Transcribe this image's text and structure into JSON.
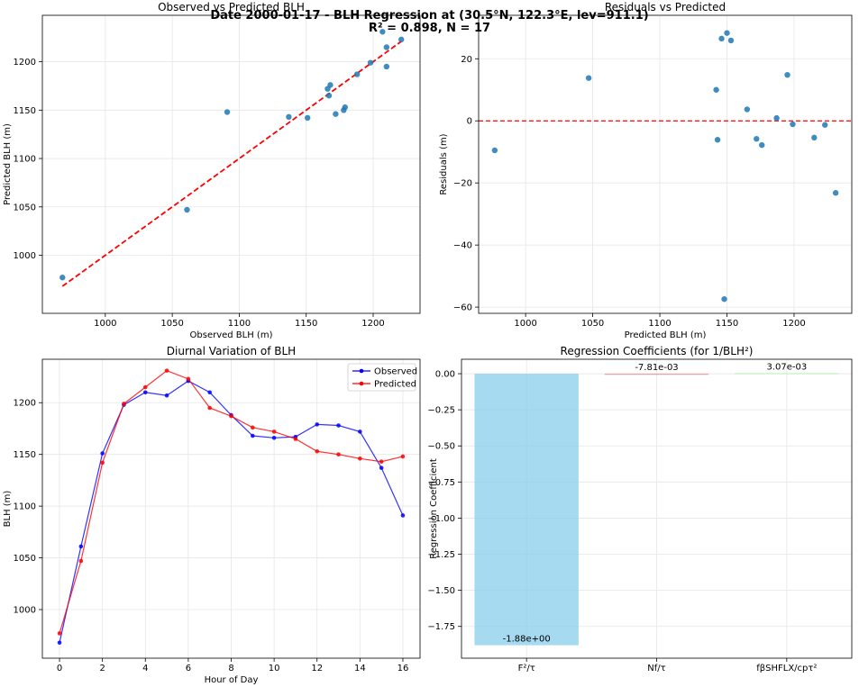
{
  "figure": {
    "title_line1": "Date 2000-01-17 - BLH Regression at (30.5°N, 122.3°E, lev=911.1)",
    "title_line2": "R² = 0.898, N = 17"
  },
  "chart_data": [
    {
      "type": "scatter",
      "title": "Observed vs Predicted BLH",
      "xlabel": "Observed BLH (m)",
      "ylabel": "Predicted BLH (m)",
      "xlim": [
        953,
        1235
      ],
      "ylim": [
        940,
        1248
      ],
      "xticks": [
        1000,
        1050,
        1100,
        1150,
        1200
      ],
      "yticks": [
        1000,
        1050,
        1100,
        1150,
        1200
      ],
      "grid": true,
      "point_color": "#1f77b4",
      "fit_color": "#ff0000",
      "fit_line": {
        "x": [
          968,
          1221
        ],
        "y": [
          968,
          1221
        ]
      },
      "points": [
        {
          "x": 968,
          "y": 977
        },
        {
          "x": 1061,
          "y": 1047
        },
        {
          "x": 1151,
          "y": 1142
        },
        {
          "x": 1198,
          "y": 1199
        },
        {
          "x": 1210,
          "y": 1215
        },
        {
          "x": 1207,
          "y": 1231
        },
        {
          "x": 1221,
          "y": 1223
        },
        {
          "x": 1210,
          "y": 1195
        },
        {
          "x": 1188,
          "y": 1187
        },
        {
          "x": 1168,
          "y": 1176
        },
        {
          "x": 1166,
          "y": 1172
        },
        {
          "x": 1167,
          "y": 1165
        },
        {
          "x": 1178,
          "y": 1150
        },
        {
          "x": 1179,
          "y": 1153
        },
        {
          "x": 1172,
          "y": 1146
        },
        {
          "x": 1137,
          "y": 1143
        },
        {
          "x": 1091,
          "y": 1148
        }
      ]
    },
    {
      "type": "scatter",
      "title": "Residuals vs Predicted",
      "xlabel": "Predicted BLH (m)",
      "ylabel": "Residuals (m)",
      "xlim": [
        965,
        1243
      ],
      "ylim": [
        -62,
        34
      ],
      "xticks": [
        1000,
        1050,
        1100,
        1150,
        1200
      ],
      "yticks": [
        -60,
        -40,
        -20,
        0,
        20
      ],
      "grid": true,
      "point_color": "#1f77b4",
      "zero_line_color": "#ff0000",
      "points": [
        {
          "x": 977,
          "y": -9.5
        },
        {
          "x": 1047,
          "y": 13.8
        },
        {
          "x": 1142,
          "y": 10
        },
        {
          "x": 1143,
          "y": -6.1
        },
        {
          "x": 1146,
          "y": 26.5
        },
        {
          "x": 1148,
          "y": -57.4
        },
        {
          "x": 1150,
          "y": 28.3
        },
        {
          "x": 1153,
          "y": 25.9
        },
        {
          "x": 1165,
          "y": 3.7
        },
        {
          "x": 1172,
          "y": -5.8
        },
        {
          "x": 1176,
          "y": -7.8
        },
        {
          "x": 1187,
          "y": 0.9
        },
        {
          "x": 1195,
          "y": 14.8
        },
        {
          "x": 1199,
          "y": -1.1
        },
        {
          "x": 1215,
          "y": -5.4
        },
        {
          "x": 1223,
          "y": -1.3
        },
        {
          "x": 1231,
          "y": -23.2
        }
      ]
    },
    {
      "type": "line",
      "title": "Diurnal Variation of BLH",
      "xlabel": "Hour of Day",
      "ylabel": "BLH (m)",
      "xlim": [
        -0.8,
        16.8
      ],
      "ylim": [
        953,
        1242
      ],
      "xticks": [
        0,
        2,
        4,
        6,
        8,
        10,
        12,
        14,
        16
      ],
      "yticks": [
        1000,
        1050,
        1100,
        1150,
        1200
      ],
      "grid": true,
      "legend": "top-right",
      "x": [
        0,
        1,
        2,
        3,
        4,
        5,
        6,
        7,
        8,
        9,
        10,
        11,
        12,
        13,
        14,
        15,
        16
      ],
      "series": [
        {
          "name": "Observed",
          "color": "#0000ff",
          "values": [
            968,
            1061,
            1151,
            1198,
            1210,
            1207,
            1221,
            1210,
            1188,
            1168,
            1166,
            1167,
            1179,
            1178,
            1172,
            1137,
            1091
          ]
        },
        {
          "name": "Predicted",
          "color": "#ff0000",
          "values": [
            977,
            1047,
            1142,
            1199,
            1215,
            1231,
            1223,
            1195,
            1187,
            1176,
            1172,
            1165,
            1153,
            1150,
            1146,
            1143,
            1148
          ]
        }
      ]
    },
    {
      "type": "bar",
      "title": "Regression Coefficients (for 1/BLH²)",
      "xlabel": "",
      "ylabel": "Regression Coefficient",
      "ylim": [
        -1.97,
        0.1
      ],
      "yticks": [
        -1.75,
        -1.5,
        -1.25,
        -1.0,
        -0.75,
        -0.5,
        -0.25,
        0.0
      ],
      "ytick_labels": [
        "−1.75",
        "−1.50",
        "−1.25",
        "−1.00",
        "−0.75",
        "−0.50",
        "−0.25",
        "0.00"
      ],
      "grid": true,
      "categories": [
        "F²/τ",
        "Nf/τ",
        "fβSHFLX/cpτ²"
      ],
      "values": [
        -1.88,
        -0.00781,
        0.00307
      ],
      "value_labels": [
        "-1.88e+00",
        "-7.81e-03",
        "3.07e-03"
      ],
      "colors": [
        "#87ceeb",
        "#f08080",
        "#90ee90"
      ]
    }
  ]
}
